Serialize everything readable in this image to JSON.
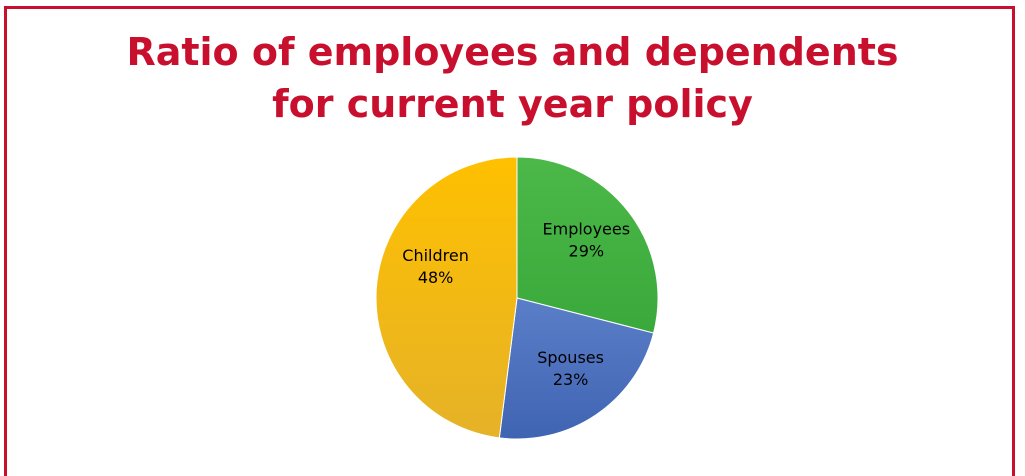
{
  "title_lines": [
    "Ratio of employees and dependents",
    "for current year policy"
  ],
  "colors": {
    "frame": "#c8102e",
    "title": "#c8102e"
  },
  "chart_data": {
    "type": "pie",
    "title": "Ratio of employees and dependents for current year policy",
    "start_angle_deg": 0,
    "direction": "clockwise",
    "slices": [
      {
        "label": "Employees",
        "value": 29,
        "display": "29%",
        "color": "#4cb84a",
        "color_dark": "#3aa83a"
      },
      {
        "label": "Spouses",
        "value": 23,
        "display": "23%",
        "color": "#5b7ec8",
        "color_dark": "#3f64b2"
      },
      {
        "label": "Children",
        "value": 48,
        "display": "48%",
        "color": "#ffc000",
        "color_dark": "#e5b228"
      }
    ],
    "legend": "none"
  }
}
